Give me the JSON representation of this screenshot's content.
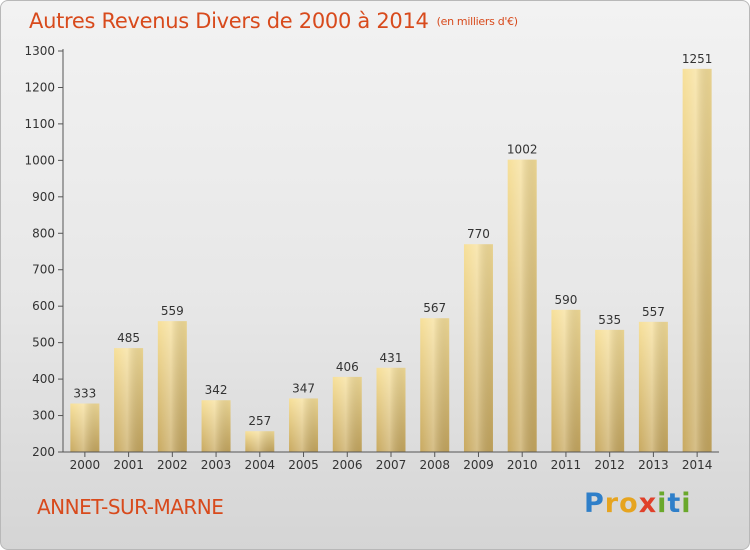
{
  "title": "Autres Revenus Divers de 2000 à 2014",
  "title_unit": "(en milliers d'€)",
  "commune": "ANNET-SUR-MARNE",
  "logo": {
    "letters": [
      "P",
      "r",
      "o",
      "x",
      "i",
      "t",
      "i"
    ],
    "colors": [
      "#2f7fc9",
      "#e6a41f",
      "#e6a41f",
      "#e0402a",
      "#6aa82b",
      "#2f7fc9",
      "#6aa82b"
    ]
  },
  "colors": {
    "title": "#d84a1c",
    "bar_light": "#f7e09a",
    "bar_dark": "#c8a960"
  },
  "chart_data": {
    "type": "bar",
    "title": "Autres Revenus Divers de 2000 à 2014",
    "categories": [
      "2000",
      "2001",
      "2002",
      "2003",
      "2004",
      "2005",
      "2006",
      "2007",
      "2008",
      "2009",
      "2010",
      "2011",
      "2012",
      "2013",
      "2014"
    ],
    "values": [
      333,
      485,
      559,
      342,
      257,
      347,
      406,
      431,
      567,
      770,
      1002,
      590,
      535,
      557,
      1251
    ],
    "yticks": [
      200,
      300,
      400,
      500,
      600,
      700,
      800,
      900,
      1000,
      1100,
      1200,
      1300
    ],
    "ylim": [
      200,
      1300
    ],
    "xlabel": "",
    "ylabel": "",
    "grid": false,
    "legend": "none"
  }
}
